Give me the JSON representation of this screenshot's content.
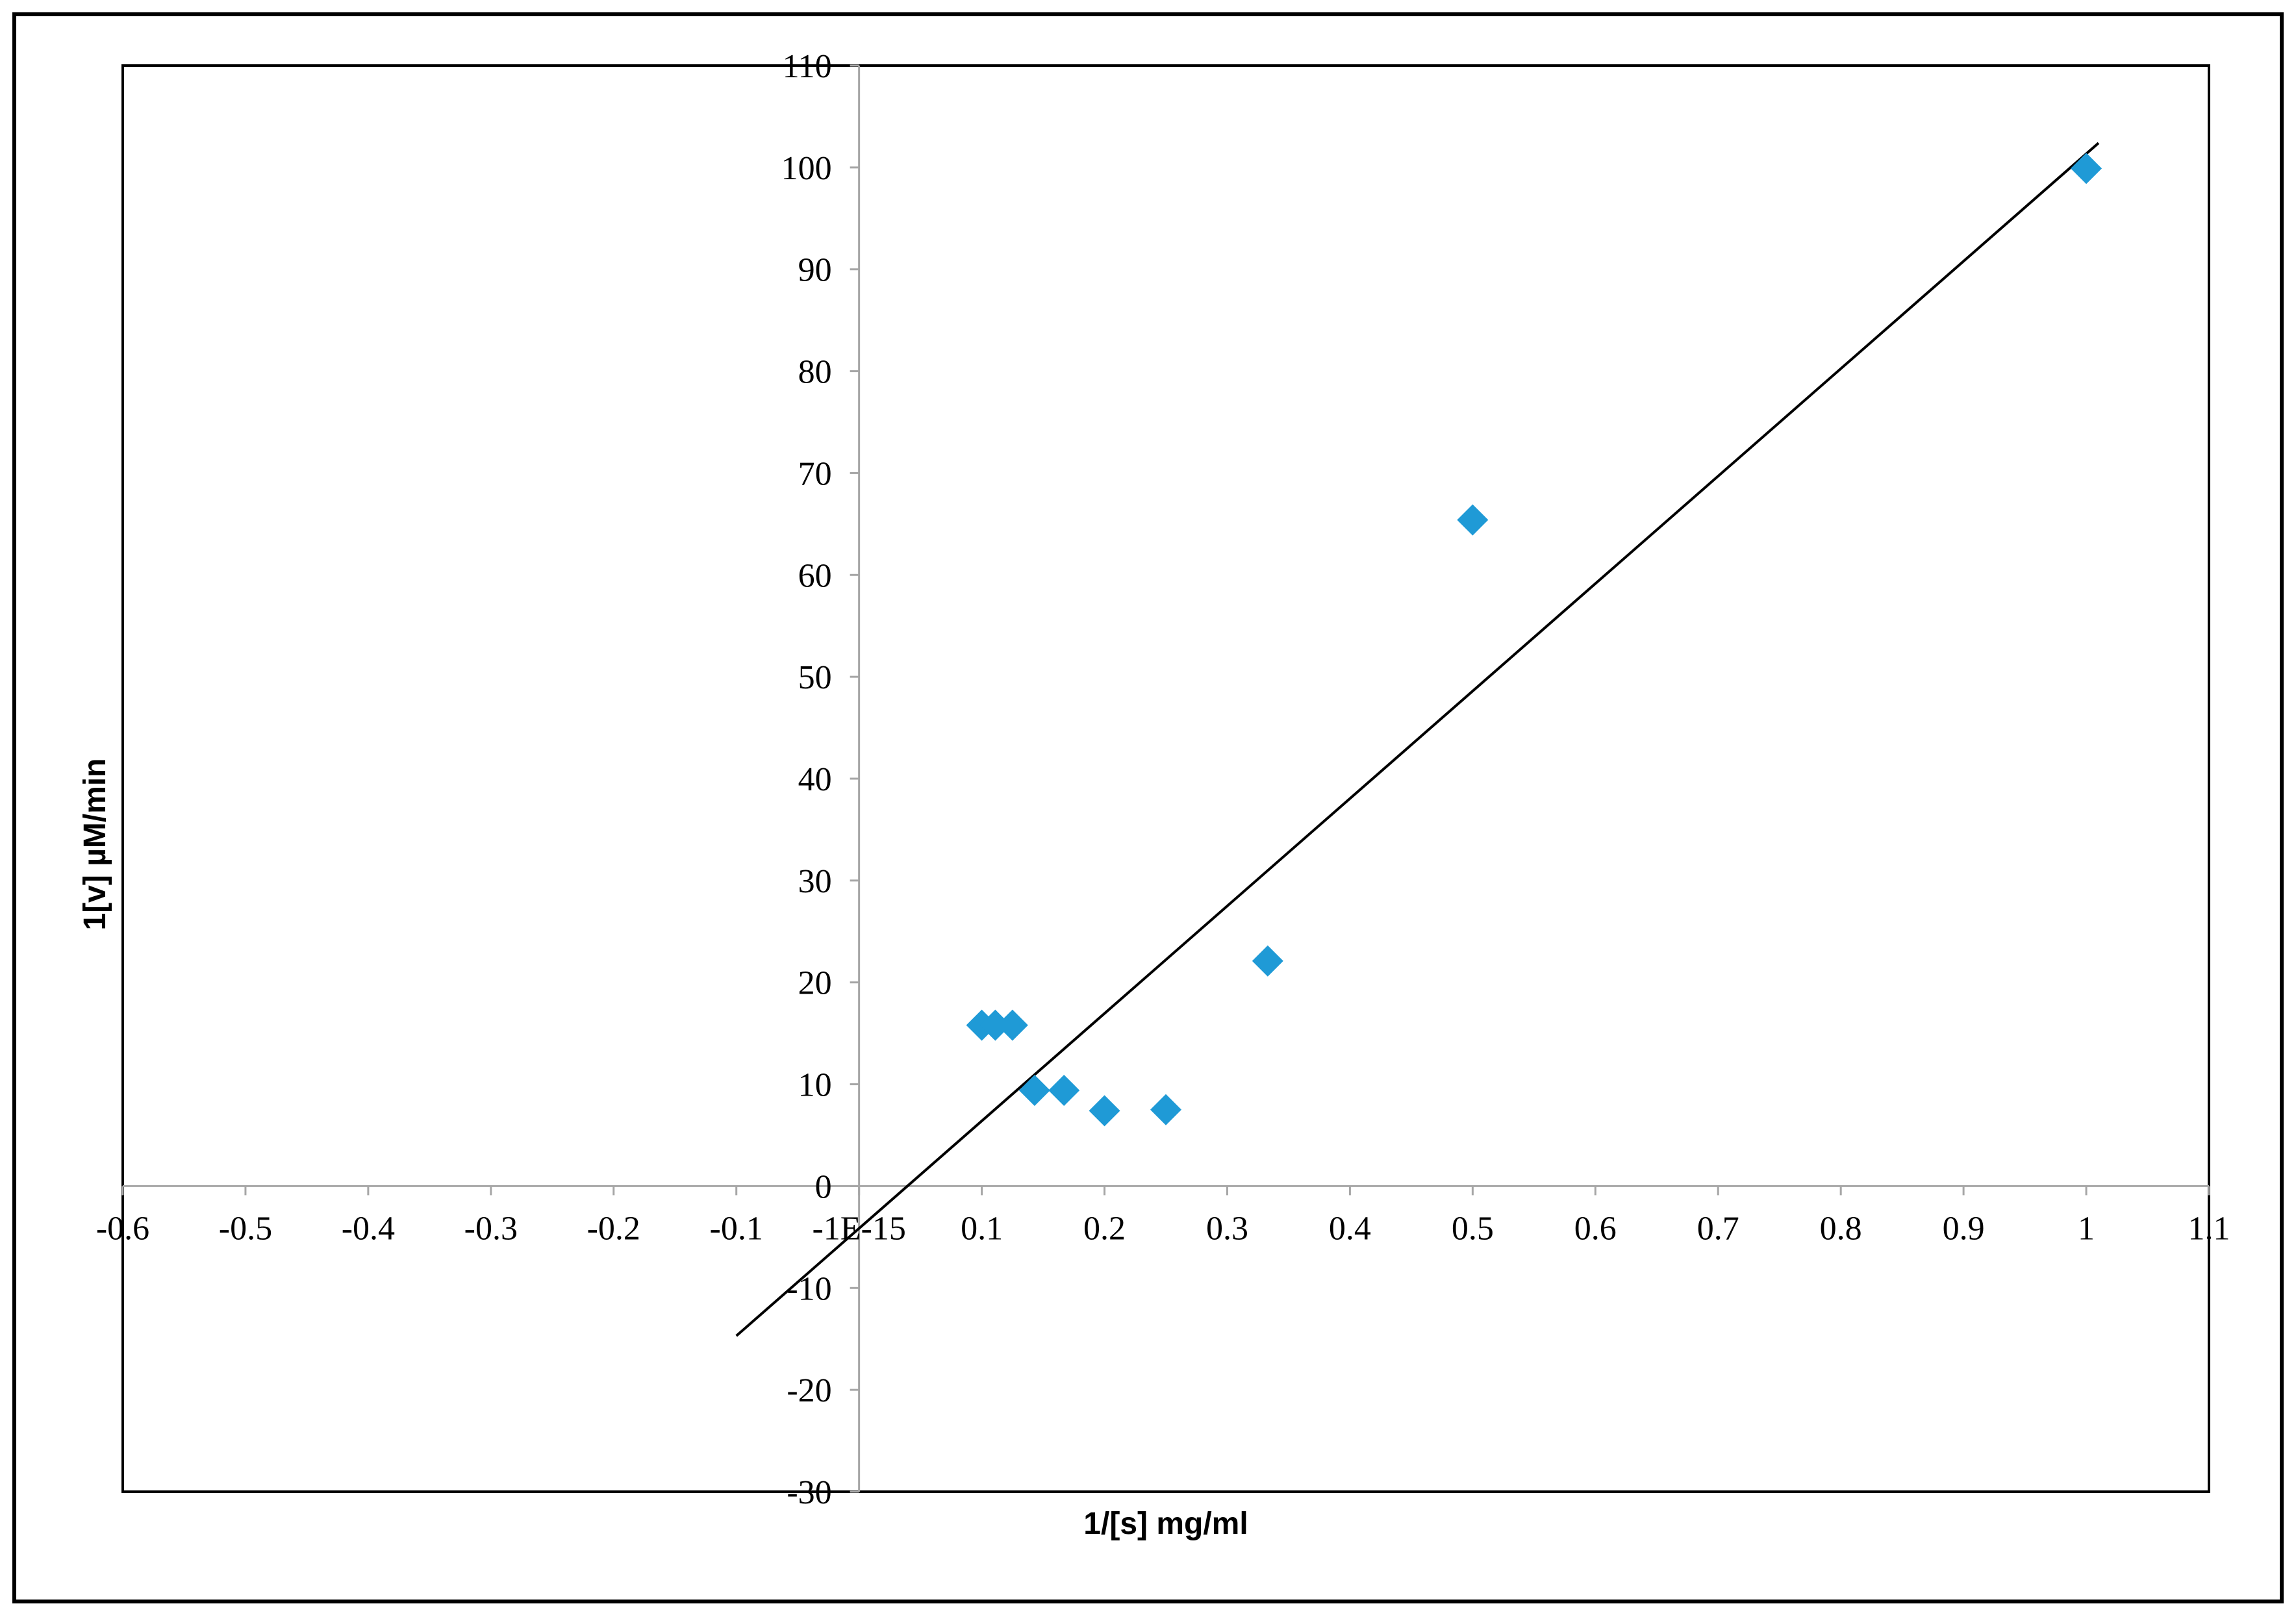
{
  "chart_data": {
    "type": "scatter",
    "title": "",
    "xlabel": "1/[s] mg/ml",
    "ylabel": "1[v] µM/min",
    "xlim": [
      -0.6,
      1.1
    ],
    "ylim": [
      -30,
      110
    ],
    "grid": false,
    "legend": "none",
    "x_ticks": [
      -0.6,
      -0.5,
      -0.4,
      -0.3,
      -0.2,
      -0.1,
      0,
      0.1,
      0.2,
      0.3,
      0.4,
      0.5,
      0.6,
      0.7,
      0.8,
      0.9,
      1,
      1.1
    ],
    "x_tick_labels": [
      "-0.6",
      "-0.5",
      "-0.4",
      "-0.3",
      "-0.2",
      "-0.1",
      "-1E-15",
      "0.1",
      "0.2",
      "0.3",
      "0.4",
      "0.5",
      "0.6",
      "0.7",
      "0.8",
      "0.9",
      "1",
      "1.1"
    ],
    "y_ticks": [
      -30,
      -20,
      -10,
      0,
      10,
      20,
      30,
      40,
      50,
      60,
      70,
      80,
      90,
      100,
      110
    ],
    "y_tick_labels": [
      "-30",
      "-20",
      "-10",
      "0",
      "10",
      "20",
      "30",
      "40",
      "50",
      "60",
      "70",
      "80",
      "90",
      "100",
      "110"
    ],
    "series": [
      {
        "marker": "diamond",
        "color": "#1f9ad6",
        "x": [
          0.1,
          0.111,
          0.125,
          0.143,
          0.167,
          0.2,
          0.25,
          0.333,
          0.5,
          1.0
        ],
        "y": [
          15.8,
          15.8,
          15.8,
          9.4,
          9.4,
          7.4,
          7.5,
          22.1,
          65.4,
          99.9
        ]
      }
    ],
    "trendline": {
      "type": "linear",
      "color": "#000000",
      "x": [
        -0.1,
        1.01
      ],
      "y": [
        -14.7,
        102.4
      ]
    }
  },
  "colors": {
    "border": "#000000",
    "axis": "#a6a6a6",
    "marker": "#1f9ad6",
    "trendline": "#000000"
  }
}
